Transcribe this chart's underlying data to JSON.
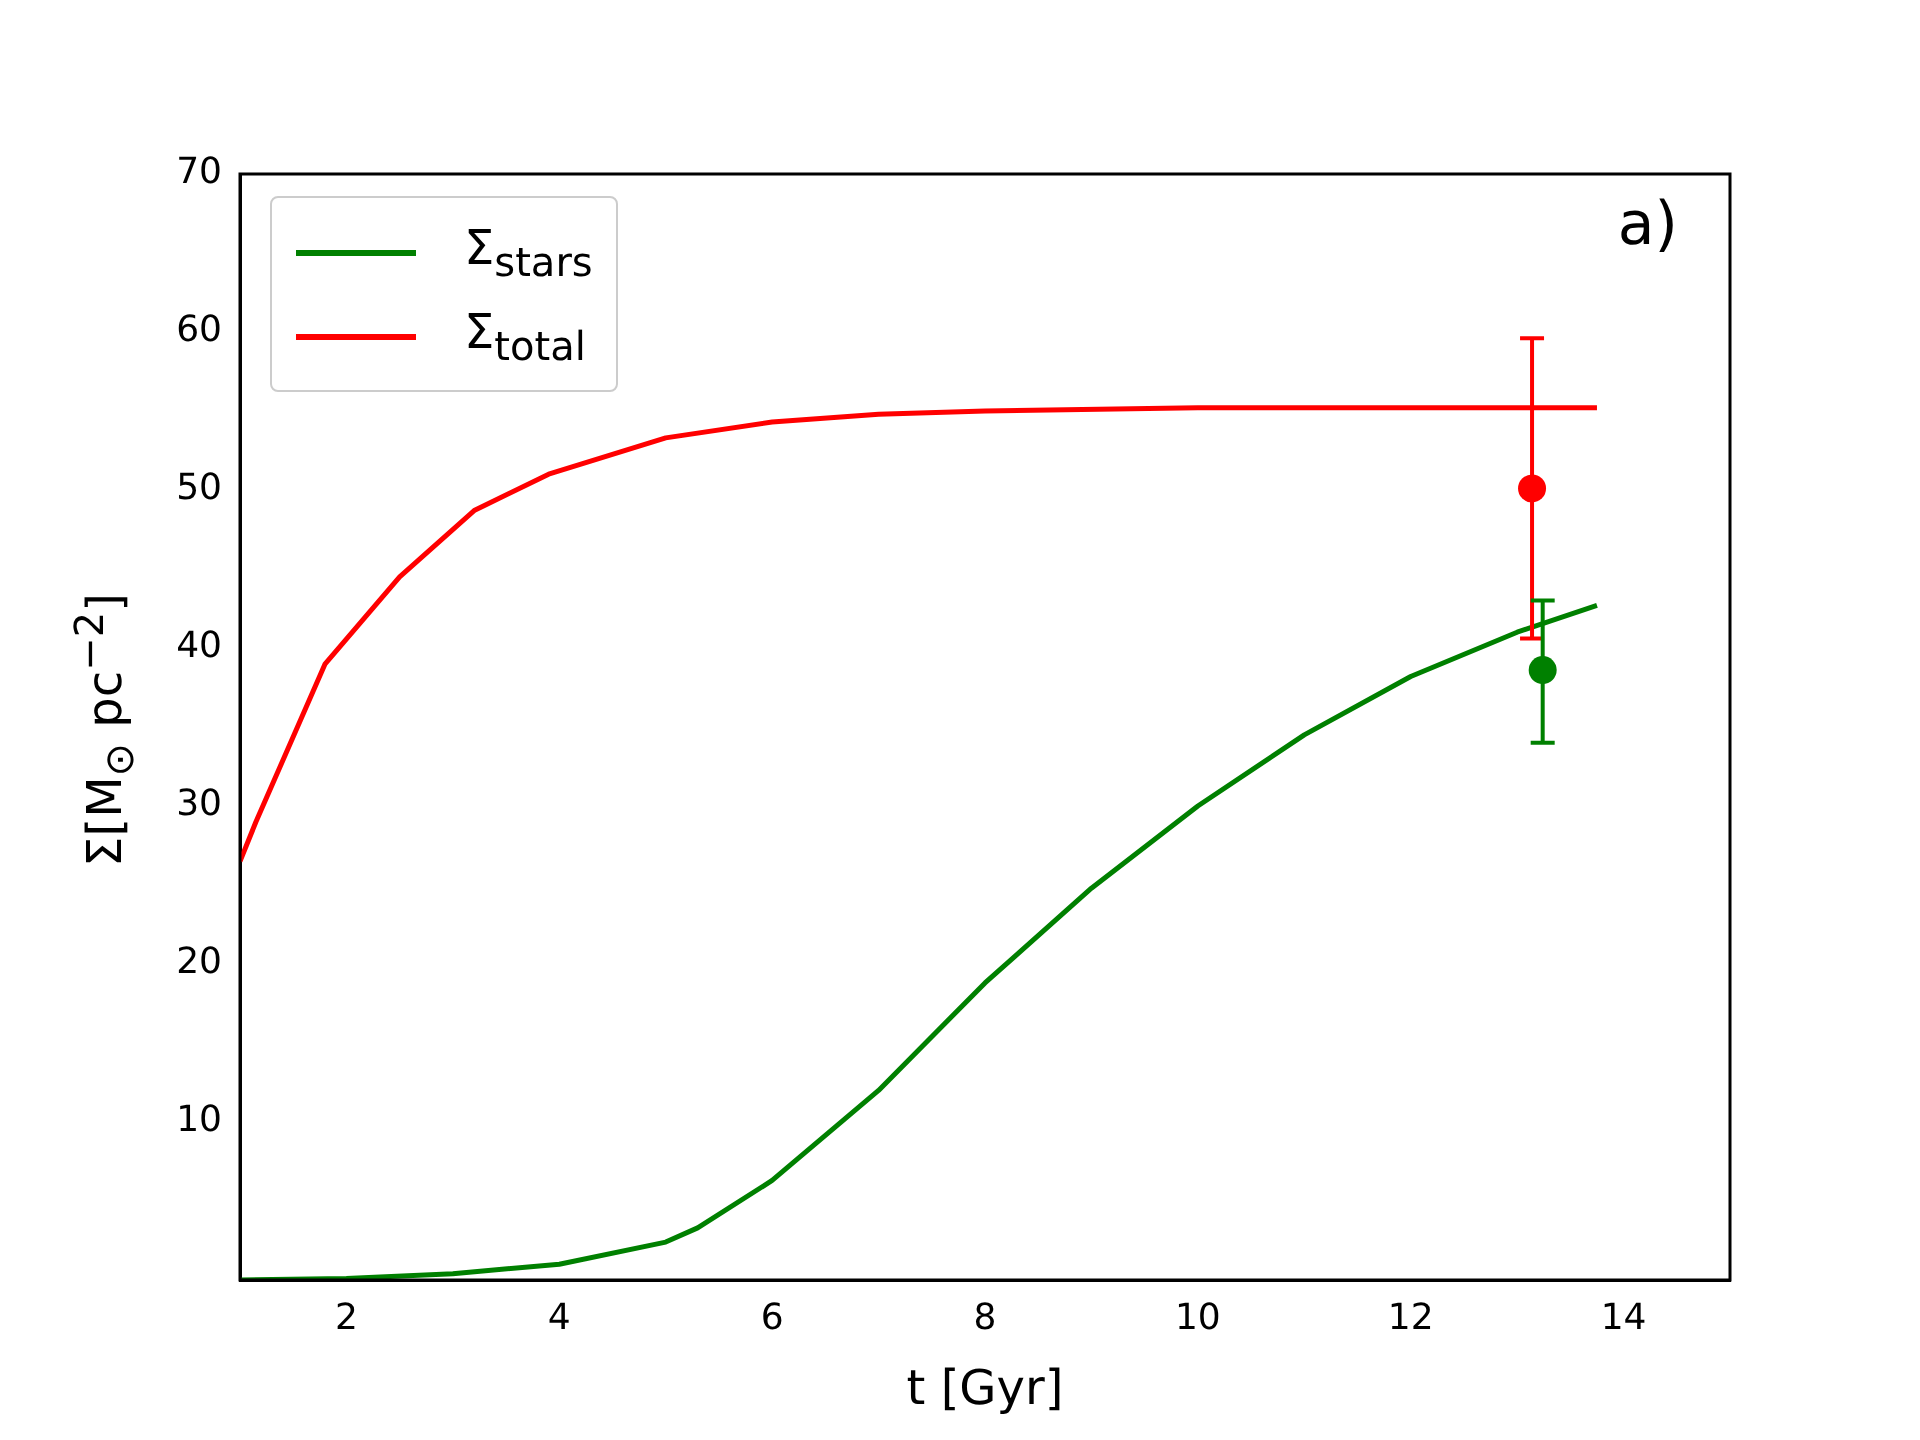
{
  "chart_data": {
    "type": "line",
    "xlabel": "t [Gyr]",
    "ylabel": "Σ[M$_{⊙}$ pc$^{−2}$]",
    "annotations": [
      "a)"
    ],
    "xlim": [
      1,
      15
    ],
    "ylim": [
      0,
      70
    ],
    "xticks": [
      2,
      4,
      6,
      8,
      10,
      12,
      14
    ],
    "yticks": [
      10,
      20,
      30,
      40,
      50,
      60,
      70
    ],
    "grid": false,
    "legend": "top left",
    "line_style": "solid",
    "series": [
      {
        "name": "Σ$_{stars}$",
        "type": "line",
        "marker": "none",
        "color": "#008000",
        "x": [
          1,
          2,
          3,
          4,
          5,
          5.3,
          6,
          7,
          8,
          9,
          10,
          11,
          12,
          13,
          13.75
        ],
        "values": [
          0,
          0.1,
          0.4,
          1.0,
          2.4,
          3.3,
          6.3,
          12,
          18.8,
          24.8,
          30,
          34.5,
          38.2,
          41,
          42.7
        ]
      },
      {
        "name": "Σ$_{total}$",
        "type": "line",
        "marker": "none",
        "color": "#ff0000",
        "x": [
          1,
          1.15,
          1.8,
          2.5,
          3.2,
          3.9,
          5,
          6,
          7,
          8,
          10,
          12,
          13.75
        ],
        "values": [
          26.5,
          29,
          39,
          44.5,
          48.7,
          51,
          53.3,
          54.3,
          54.8,
          55.0,
          55.2,
          55.2,
          55.2
        ]
      },
      {
        "type": "scatter",
        "marker": "circle",
        "color": "#ff0000",
        "x": [
          13.14
        ],
        "values": [
          50.1
        ],
        "errors": [
          [
            40.6,
            59.6
          ]
        ]
      },
      {
        "type": "scatter",
        "marker": "circle",
        "color": "#008000",
        "x": [
          13.24
        ],
        "values": [
          38.6
        ],
        "errors": [
          [
            34.0,
            43.0
          ]
        ]
      }
    ]
  }
}
